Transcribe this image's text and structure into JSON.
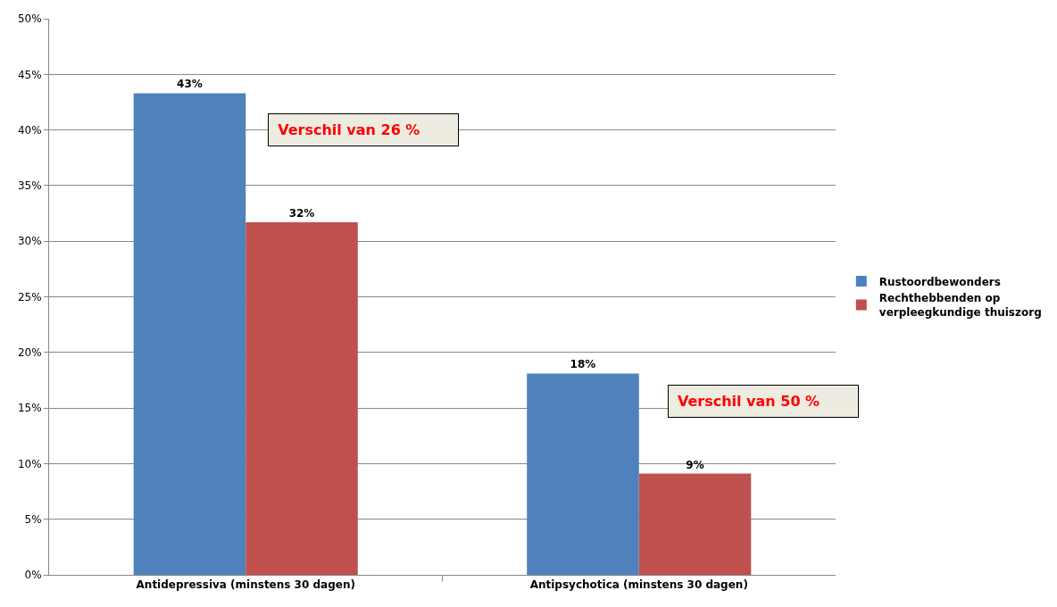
{
  "chart_data": {
    "type": "bar",
    "categories": [
      "Antidepressiva (minstens 30 dagen)",
      "Antipsychotica (minstens 30 dagen)"
    ],
    "series": [
      {
        "name": "Rustoordbewonders",
        "color": "#4f81bd",
        "values": [
          43.3,
          18.1
        ],
        "value_labels": [
          "43%",
          "18%"
        ]
      },
      {
        "name": "Rechthebbenden op verpleegkundige thuiszorg",
        "color": "#c0504d",
        "values": [
          31.7,
          9.1
        ],
        "value_labels": [
          "32%",
          "9%"
        ]
      }
    ],
    "ylim": [
      0,
      50
    ],
    "yticks": [
      {
        "value": 0,
        "label": "0%"
      },
      {
        "value": 5,
        "label": "5%"
      },
      {
        "value": 10,
        "label": "10%"
      },
      {
        "value": 15,
        "label": "15%"
      },
      {
        "value": 20,
        "label": "20%"
      },
      {
        "value": 25,
        "label": "25%"
      },
      {
        "value": 30,
        "label": "30%"
      },
      {
        "value": 35,
        "label": "35%"
      },
      {
        "value": 40,
        "label": "40%"
      },
      {
        "value": 45,
        "label": "45%"
      },
      {
        "value": 50,
        "label": "50%"
      }
    ],
    "grid": "y",
    "legend": "right",
    "annotations": [
      "Verschil van 26 %",
      "Verschil van 50 %"
    ]
  }
}
